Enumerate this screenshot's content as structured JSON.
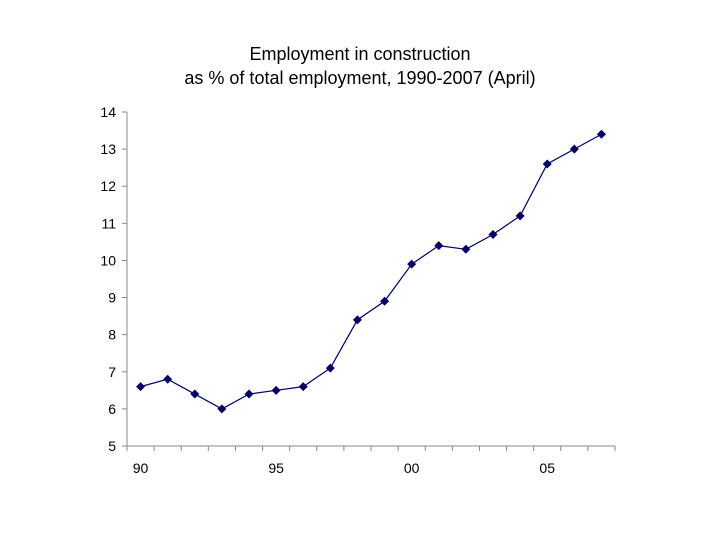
{
  "chart_data": {
    "type": "line",
    "title": "Employment in construction",
    "subtitle": "as % of total employment, 1990-2007 (April)",
    "xlabel": "",
    "ylabel": "",
    "x": [
      1990,
      1991,
      1992,
      1993,
      1994,
      1995,
      1996,
      1997,
      1998,
      1999,
      2000,
      2001,
      2002,
      2003,
      2004,
      2005,
      2006,
      2007
    ],
    "xlim": [
      1989.5,
      2007.5
    ],
    "x_tick_values": [
      1990,
      1995,
      2000,
      2005
    ],
    "x_tick_labels": [
      "90",
      "95",
      "00",
      "05"
    ],
    "ylim": [
      5,
      14
    ],
    "y_ticks": [
      5,
      6,
      7,
      8,
      9,
      10,
      11,
      12,
      13,
      14
    ],
    "grid": false,
    "legend": "none",
    "series": [
      {
        "color": "#000066",
        "marker": "diamond",
        "values": [
          6.6,
          6.8,
          6.4,
          6.0,
          6.4,
          6.5,
          6.6,
          7.1,
          8.4,
          8.9,
          9.9,
          10.4,
          10.3,
          10.7,
          11.2,
          12.6,
          13.0,
          13.4
        ]
      }
    ]
  }
}
